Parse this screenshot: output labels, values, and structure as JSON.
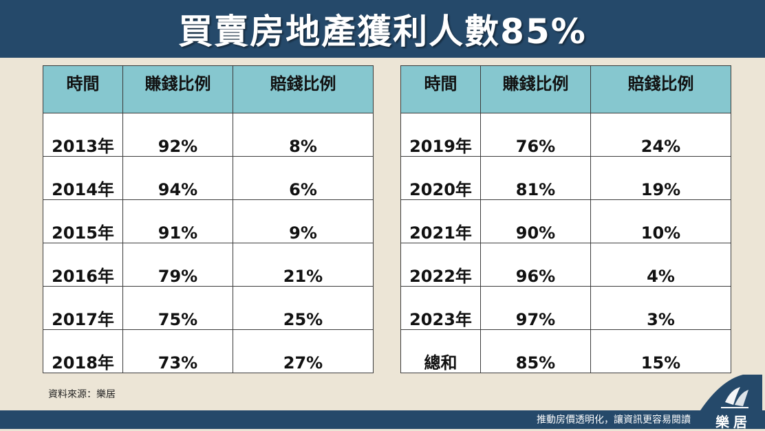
{
  "header": {
    "title": "買賣房地產獲利人數85%"
  },
  "columns": [
    "時間",
    "賺錢比例",
    "賠錢比例"
  ],
  "left_rows": [
    {
      "year": "2013年",
      "earn": "92%",
      "loss": "8%"
    },
    {
      "year": "2014年",
      "earn": "94%",
      "loss": "6%"
    },
    {
      "year": "2015年",
      "earn": "91%",
      "loss": "9%"
    },
    {
      "year": "2016年",
      "earn": "79%",
      "loss": "21%"
    },
    {
      "year": "2017年",
      "earn": "75%",
      "loss": "25%"
    },
    {
      "year": "2018年",
      "earn": "73%",
      "loss": "27%"
    }
  ],
  "right_rows": [
    {
      "year": "2019年",
      "earn": "76%",
      "loss": "24%"
    },
    {
      "year": "2020年",
      "earn": "81%",
      "loss": "19%"
    },
    {
      "year": "2021年",
      "earn": "90%",
      "loss": "10%"
    },
    {
      "year": "2022年",
      "earn": "96%",
      "loss": "4%"
    },
    {
      "year": "2023年",
      "earn": "97%",
      "loss": "3%"
    },
    {
      "year": "總和",
      "earn": "85%",
      "loss": "15%"
    }
  ],
  "source": "資料來源：樂居",
  "footer": {
    "slogan": "推動房價透明化，讓資訊更容易閱讀"
  },
  "logo": {
    "text": "樂居",
    "icon": "leju-logo-icon"
  },
  "colors": {
    "header": "#25496a",
    "table_header": "#86c7cf",
    "background": "#ece5d6"
  }
}
